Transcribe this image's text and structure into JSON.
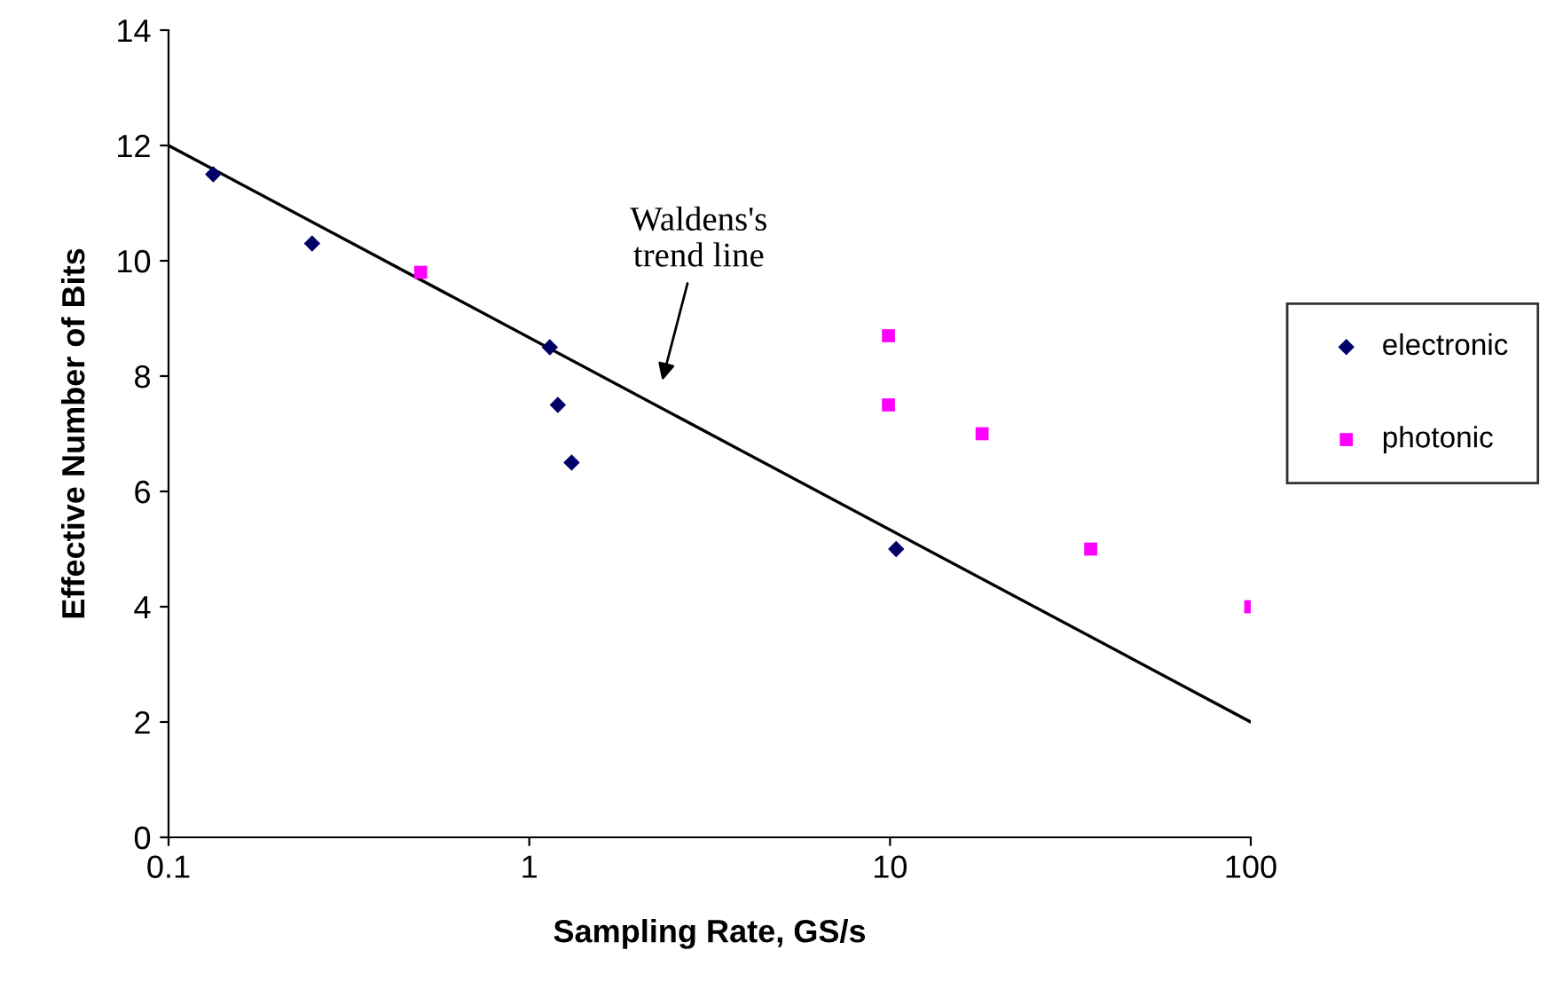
{
  "chart_data": {
    "type": "scatter",
    "xlabel": "Sampling Rate, GS/s",
    "ylabel": "Effective Number of Bits",
    "log": "x",
    "xlim": [
      0.1,
      100
    ],
    "xticks": [
      0.1,
      1,
      10,
      100
    ],
    "ylim": [
      0,
      14
    ],
    "yticks": [
      0,
      2,
      4,
      6,
      8,
      10,
      12,
      14
    ],
    "grid": false,
    "legend": "right",
    "series": [
      {
        "name": "electronic",
        "color": "#000066",
        "marker": "diamond",
        "x": [
          0.133,
          0.25,
          1.14,
          1.2,
          1.31,
          10.4
        ],
        "values": [
          11.5,
          10.3,
          8.5,
          7.5,
          6.5,
          5.0
        ]
      },
      {
        "name": "photonic",
        "color": "#ff00ff",
        "marker": "square",
        "x": [
          0.5,
          9.9,
          9.9,
          18,
          36,
          100
        ],
        "values": [
          9.8,
          8.7,
          7.5,
          7.0,
          5.0,
          4.0
        ]
      },
      {
        "type": "line",
        "color": "#000000",
        "marker": "none",
        "x": [
          0.1,
          100
        ],
        "values": [
          12,
          2
        ]
      }
    ],
    "annotations": [
      "Waldens's\ntrend line"
    ]
  }
}
